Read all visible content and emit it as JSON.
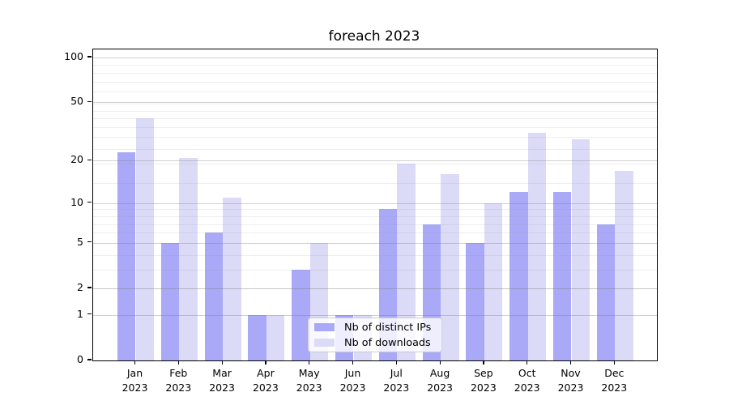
{
  "chart_data": {
    "type": "bar",
    "title": "foreach 2023",
    "months": [
      "Jan",
      "Feb",
      "Mar",
      "Apr",
      "May",
      "Jun",
      "Jul",
      "Aug",
      "Sep",
      "Oct",
      "Nov",
      "Dec"
    ],
    "year_label": "2023",
    "series": [
      {
        "name": "Nb of distinct IPs",
        "color": "#a9a9f8",
        "values": [
          23,
          5,
          6,
          1,
          3,
          1,
          9,
          7,
          5,
          12,
          12,
          7
        ]
      },
      {
        "name": "Nb of downloads",
        "color": "#dbdbf8",
        "values": [
          39,
          21,
          11,
          1,
          5,
          1,
          19,
          16,
          10,
          31,
          28,
          17
        ]
      }
    ],
    "y_axis": {
      "scale": "log10(value+1)",
      "max": 100,
      "ticks": [
        100,
        50,
        20,
        10,
        5,
        2,
        1,
        0
      ],
      "minor_gridlines": [
        2,
        3,
        4,
        6,
        7,
        8,
        9,
        14,
        19,
        24,
        29,
        34,
        39,
        44,
        49,
        59,
        69,
        79,
        89
      ]
    },
    "x_axis": {
      "tick_labels_two_lines": true
    },
    "grid": true,
    "legend_position": "lower-center-inside"
  }
}
